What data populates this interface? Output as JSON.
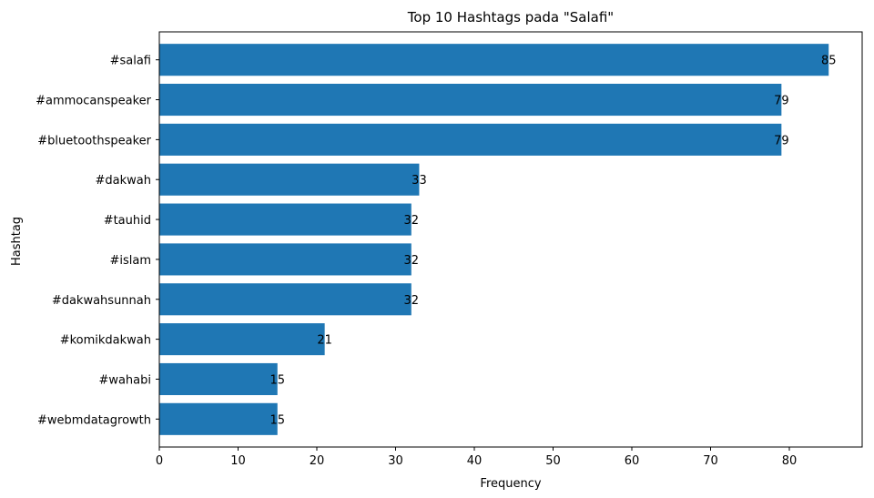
{
  "chart_data": {
    "type": "bar",
    "orientation": "horizontal",
    "title": "Top 10 Hashtags pada \"Salafi\"",
    "xlabel": "Frequency",
    "ylabel": "Hashtag",
    "categories": [
      "#salafi",
      "#ammocanspeaker",
      "#bluetoothspeaker",
      "#dakwah",
      "#tauhid",
      "#islam",
      "#dakwahsunnah",
      "#komikdakwah",
      "#wahabi",
      "#webmdatagrowth"
    ],
    "values": [
      85,
      79,
      79,
      33,
      32,
      32,
      32,
      21,
      15,
      15
    ],
    "xlim": [
      0,
      89.25
    ],
    "xticks": [
      0,
      10,
      20,
      30,
      40,
      50,
      60,
      70,
      80
    ],
    "bar_color": "#1f77b4",
    "grid": false,
    "legend": false,
    "data_labels": true
  }
}
